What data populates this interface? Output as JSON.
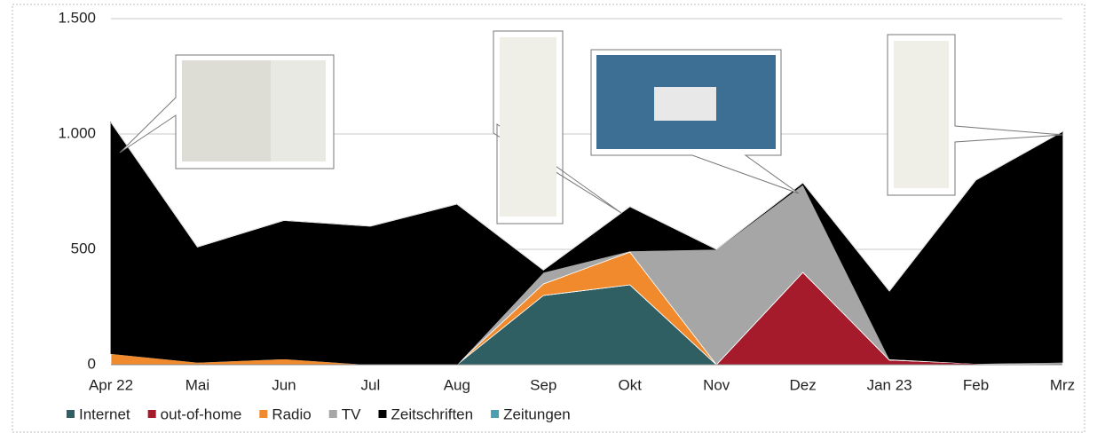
{
  "chart_data": {
    "type": "stacked-area",
    "categories": [
      "Apr 22",
      "Mai",
      "Jun",
      "Jul",
      "Aug",
      "Sep",
      "Okt",
      "Nov",
      "Dez",
      "Jan 23",
      "Feb",
      "Mrz"
    ],
    "series": [
      {
        "name": "Internet",
        "color": "#2f5f63",
        "values": [
          0,
          0,
          0,
          0,
          0,
          300,
          346,
          0,
          0,
          0,
          0,
          0
        ]
      },
      {
        "name": "out-of-home",
        "color": "#a51b2b",
        "values": [
          0,
          0,
          0,
          0,
          0,
          0,
          0,
          0,
          400,
          20,
          5,
          0
        ]
      },
      {
        "name": "Radio",
        "color": "#f08a2c",
        "values": [
          48,
          10,
          25,
          0,
          0,
          50,
          142,
          0,
          0,
          0,
          0,
          0
        ]
      },
      {
        "name": "TV",
        "color": "#a6a6a6",
        "values": [
          0,
          0,
          0,
          0,
          0,
          50,
          5,
          500,
          380,
          5,
          0,
          10
        ]
      },
      {
        "name": "Zeitschriften",
        "color": "#000000",
        "values": [
          1002,
          500,
          600,
          600,
          696,
          10,
          192,
          0,
          8,
          294,
          795,
          1000
        ]
      },
      {
        "name": "Zeitungen",
        "color": "#4a9fb3",
        "values": [
          0,
          0,
          0,
          0,
          0,
          0,
          0,
          0,
          0,
          0,
          0,
          0
        ]
      }
    ],
    "ylim": [
      0,
      1500
    ],
    "yticks": [
      0,
      500,
      {
        "value": 1000,
        "label": "1.000"
      },
      {
        "value": 1500,
        "label": "1.500"
      }
    ],
    "grid": true,
    "legend": "bottom"
  }
}
